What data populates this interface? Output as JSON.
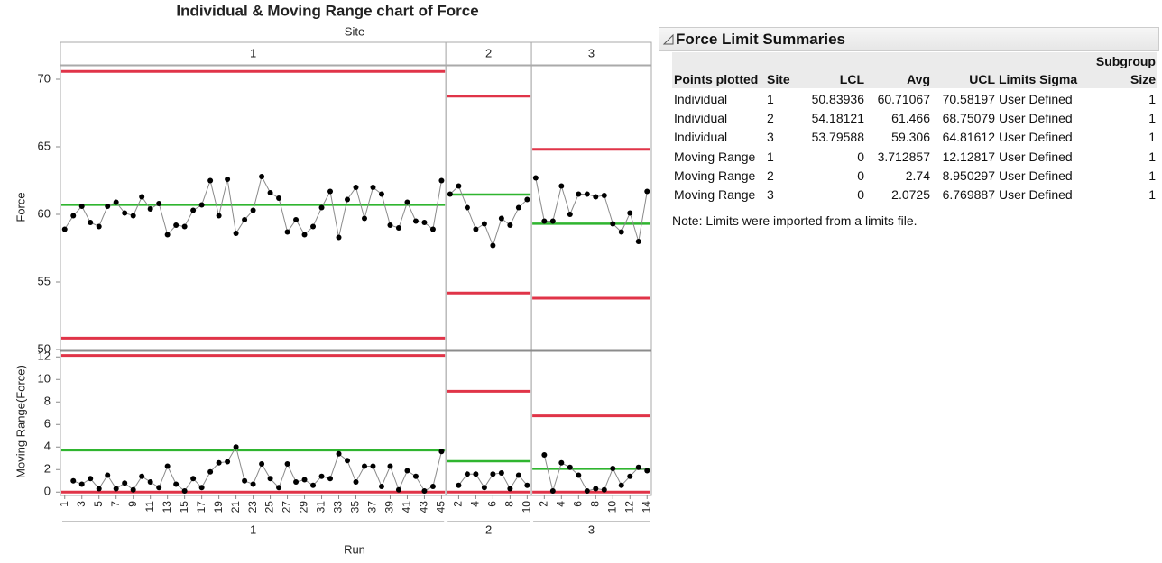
{
  "chart_data": {
    "type": "control",
    "title": "Individual & Moving Range chart of Force",
    "subtitle": "Site",
    "x_label": "Run",
    "y_label": "Force",
    "y2_label": "Moving Range(Force)",
    "ylim": [
      50,
      71
    ],
    "yticks": [
      50,
      55,
      60,
      65,
      70
    ],
    "y2lim": [
      -0.3,
      12.5
    ],
    "y2ticks": [
      0,
      2,
      4,
      6,
      8,
      10,
      12
    ],
    "point_color": "#000000",
    "line_color": "#8a8a8a",
    "limit_color": "#e03448",
    "center_color": "#2fb52f",
    "sites": [
      {
        "name": "1",
        "runs": [
          1,
          null,
          3,
          null,
          5,
          null,
          7,
          null,
          9,
          null,
          11,
          null,
          13,
          null,
          15,
          null,
          17,
          null,
          19,
          null,
          21,
          null,
          23,
          null,
          25,
          null,
          27,
          null,
          29,
          null,
          31,
          null,
          33,
          null,
          35,
          null,
          37,
          null,
          39,
          null,
          41,
          null,
          43,
          null,
          45
        ],
        "individual": [
          58.9,
          59.9,
          60.6,
          59.4,
          59.1,
          60.6,
          60.9,
          60.1,
          59.9,
          61.3,
          60.4,
          60.8,
          58.5,
          59.2,
          59.1,
          60.3,
          60.7,
          62.5,
          59.9,
          62.6,
          58.6,
          59.6,
          60.3,
          62.8,
          61.6,
          61.2,
          58.7,
          59.6,
          58.5,
          59.1,
          60.5,
          61.7,
          58.3,
          61.1,
          62.0,
          59.7,
          62.0,
          61.5,
          59.2,
          59.0,
          60.9,
          59.5,
          59.4,
          58.9,
          62.5
        ],
        "moving_range": [
          null,
          1.0,
          0.7,
          1.2,
          0.3,
          1.5,
          0.3,
          0.8,
          0.2,
          1.4,
          0.9,
          0.4,
          2.3,
          0.7,
          0.1,
          1.2,
          0.4,
          1.8,
          2.6,
          2.7,
          4.0,
          1.0,
          0.7,
          2.5,
          1.2,
          0.4,
          2.5,
          0.9,
          1.1,
          0.6,
          1.4,
          1.2,
          3.4,
          2.8,
          0.9,
          2.3,
          2.3,
          0.5,
          2.3,
          0.2,
          1.9,
          1.4,
          0.1,
          0.5,
          3.6
        ]
      },
      {
        "name": "2",
        "runs": [
          null,
          2,
          null,
          4,
          null,
          6,
          null,
          8,
          null,
          10
        ],
        "individual": [
          61.5,
          62.1,
          60.5,
          58.9,
          59.3,
          57.7,
          59.7,
          59.2,
          60.5,
          61.1
        ],
        "moving_range": [
          null,
          0.6,
          1.6,
          1.6,
          0.4,
          1.6,
          1.7,
          0.3,
          1.5,
          0.6
        ]
      },
      {
        "name": "3",
        "runs": [
          null,
          2,
          null,
          4,
          null,
          6,
          null,
          8,
          null,
          10,
          null,
          12,
          null,
          14
        ],
        "individual": [
          62.7,
          59.5,
          59.5,
          62.1,
          60.0,
          61.5,
          61.5,
          61.3,
          61.4,
          59.3,
          58.7,
          60.1,
          58.0,
          61.7
        ],
        "moving_range": [
          null,
          3.3,
          0.1,
          2.6,
          2.2,
          1.5,
          0.1,
          0.3,
          0.2,
          2.1,
          0.6,
          1.4,
          2.2,
          1.9
        ]
      }
    ]
  },
  "table": {
    "title": "Force Limit Summaries",
    "columns": [
      "Points plotted",
      "Site",
      "LCL",
      "Avg",
      "UCL",
      "Limits Sigma",
      "Subgroup Size"
    ],
    "rows": [
      [
        "Individual",
        1,
        50.83936,
        60.71067,
        70.58197,
        "User Defined",
        1
      ],
      [
        "Individual",
        2,
        54.18121,
        61.466,
        68.75079,
        "User Defined",
        1
      ],
      [
        "Individual",
        3,
        53.79588,
        59.306,
        64.81612,
        "User Defined",
        1
      ],
      [
        "Moving Range",
        1,
        0,
        3.712857,
        12.12817,
        "User Defined",
        1
      ],
      [
        "Moving Range",
        2,
        0,
        2.74,
        8.950297,
        "User Defined",
        1
      ],
      [
        "Moving Range",
        3,
        0,
        2.0725,
        6.769887,
        "User Defined",
        1
      ]
    ],
    "note": "Note: Limits were imported from a limits file."
  }
}
